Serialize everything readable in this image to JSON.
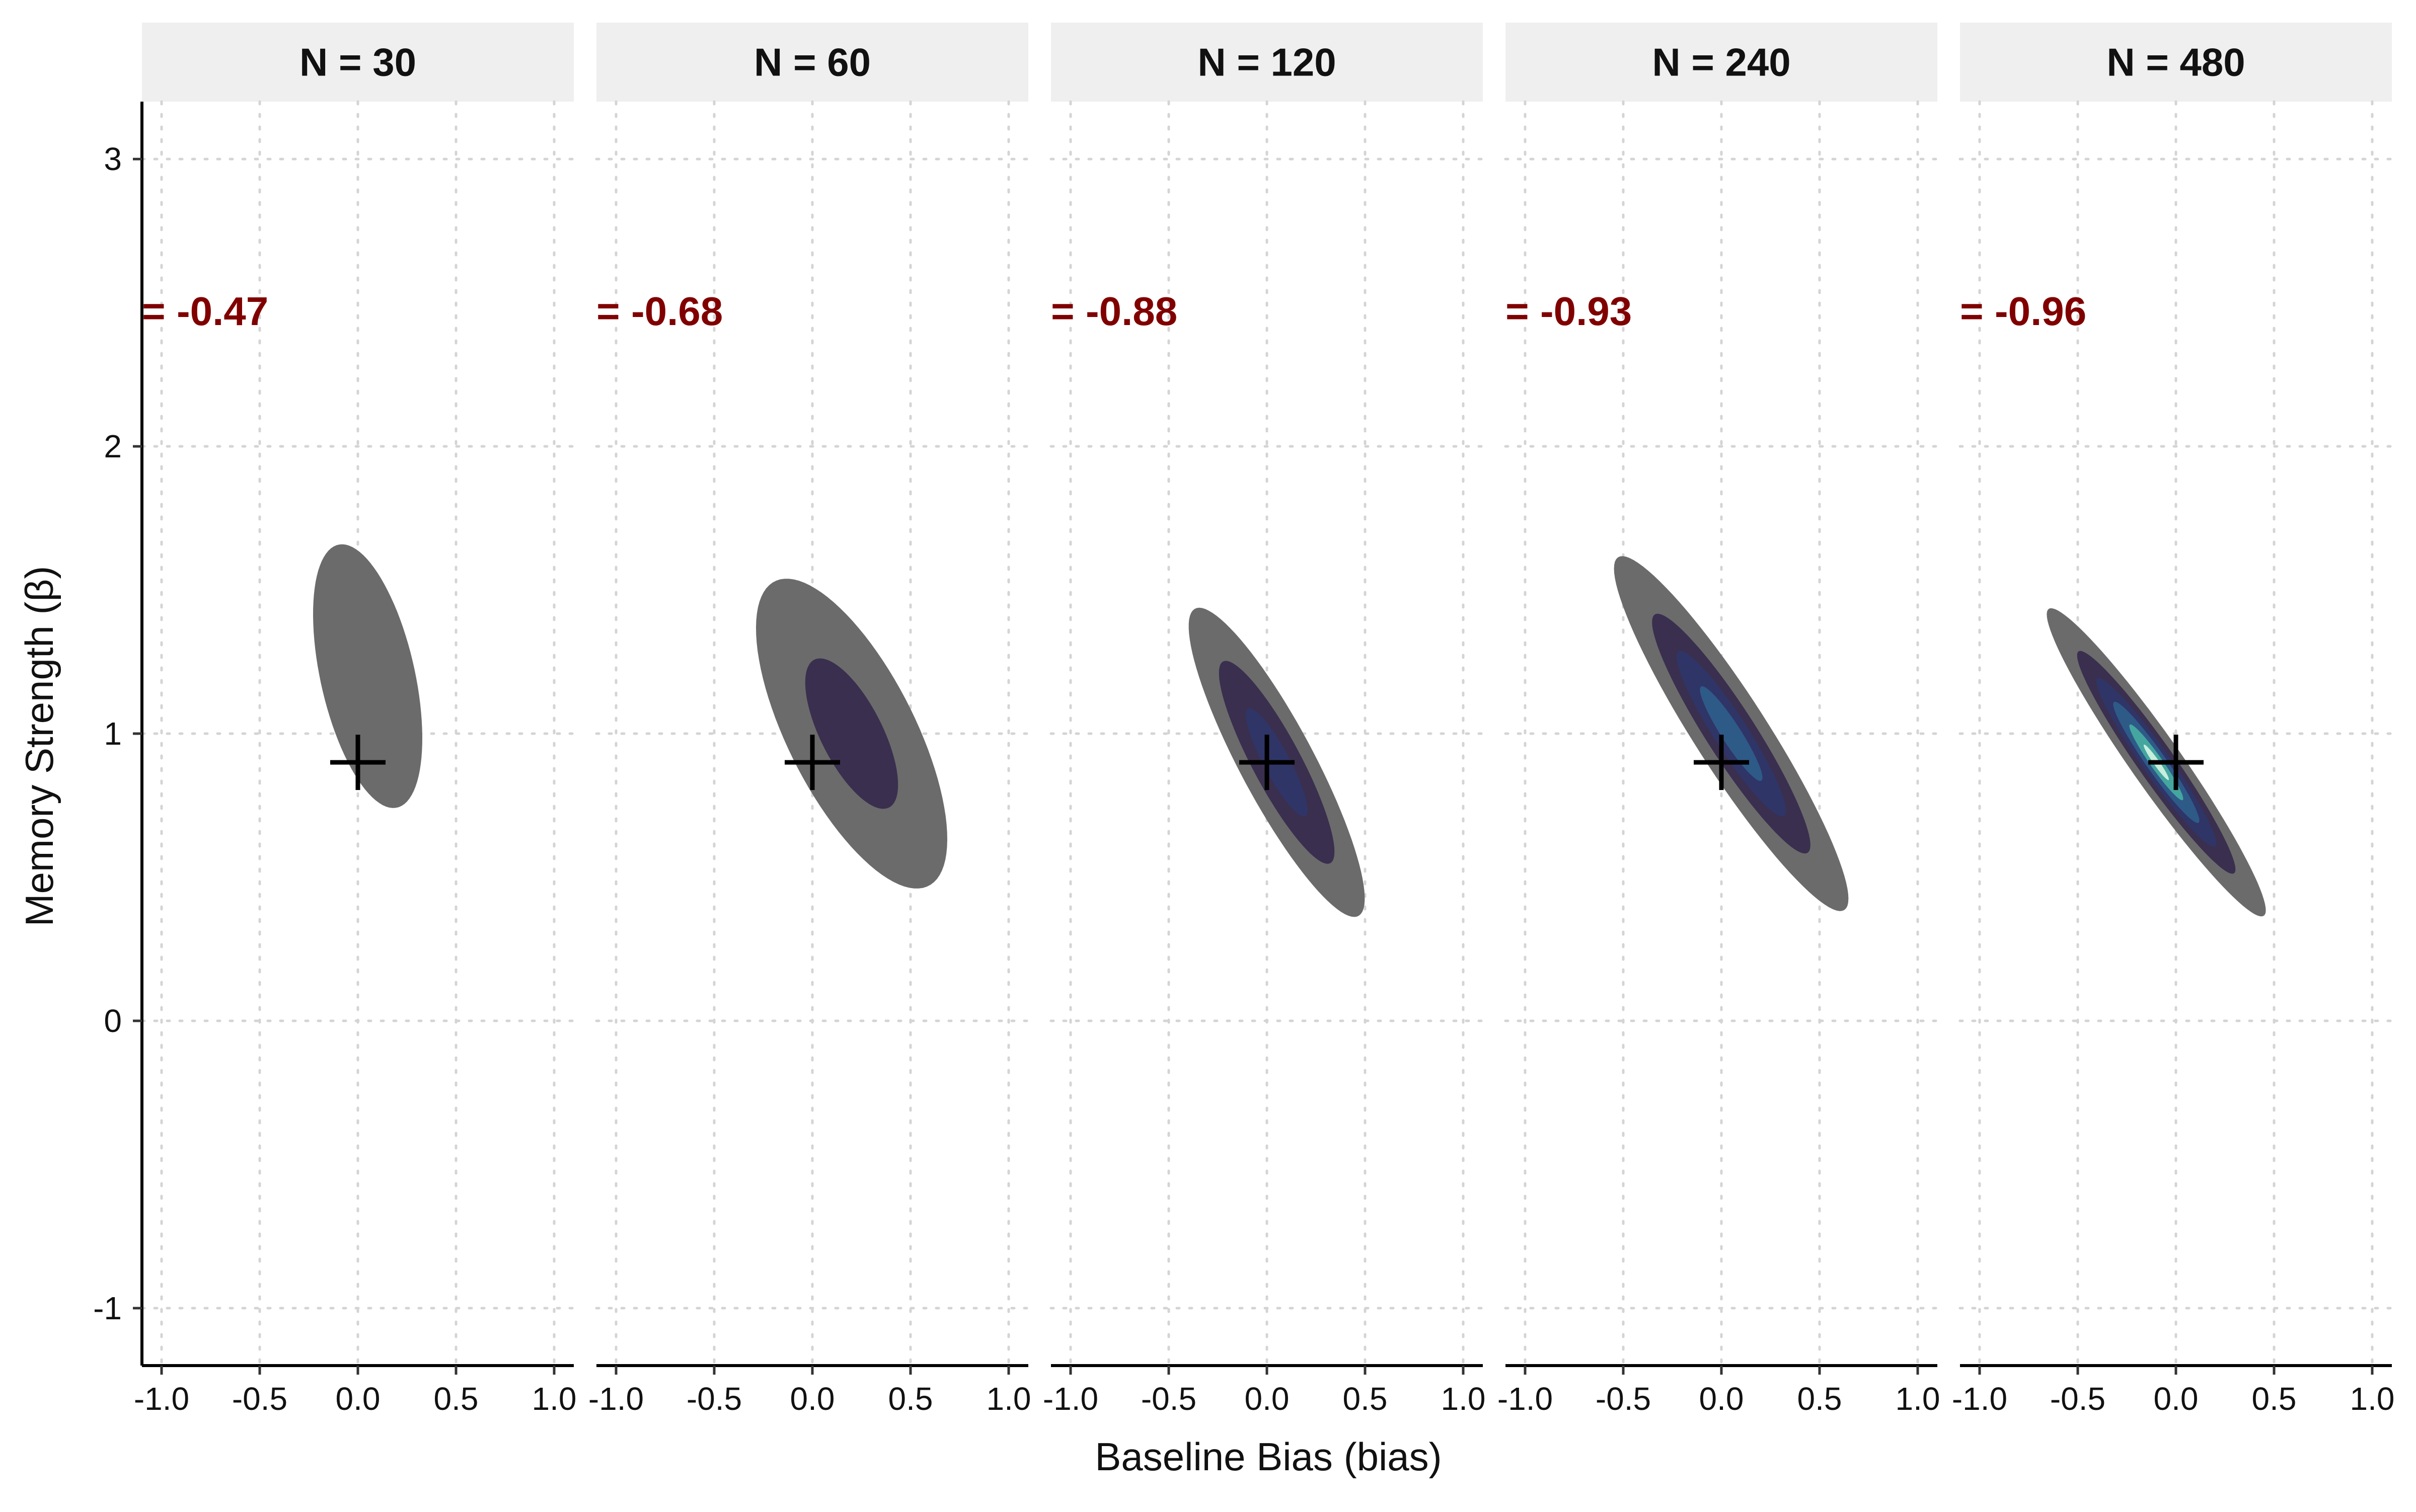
{
  "chart_data": {
    "type": "contour",
    "xlabel": "Baseline Bias (bias)",
    "ylabel": "Memory Strength (β)",
    "xlim": [
      -1.1,
      1.1
    ],
    "ylim": [
      -1.2,
      3.2
    ],
    "x_ticks": [
      "-1.0",
      "-0.5",
      "0.0",
      "0.5",
      "1.0"
    ],
    "y_ticks": [
      "-1",
      "0",
      "1",
      "2",
      "3"
    ],
    "x_tick_values": [
      -1.0,
      -0.5,
      0.0,
      0.5,
      1.0
    ],
    "y_tick_values": [
      -1,
      0,
      1,
      2,
      3
    ],
    "grid": true,
    "true_value": {
      "bias": 0.0,
      "beta": 0.9
    },
    "level_colors": [
      "#6b6b6b",
      "#3a2f4e",
      "#2f3566",
      "#2e5a88",
      "#45a6a0",
      "#c8eedd"
    ],
    "panels": [
      {
        "label": "N = 30",
        "corr_text": "= -0.47",
        "center": [
          0.05,
          1.2
        ],
        "sd_x": 0.2,
        "sd_y": 0.33,
        "rho": -0.47,
        "levels": [
          0.38
        ]
      },
      {
        "label": "N = 60",
        "corr_text": "= -0.68",
        "center": [
          0.2,
          1.0
        ],
        "sd_x": 0.28,
        "sd_y": 0.31,
        "rho": -0.68,
        "levels": [
          0.22,
          0.7
        ]
      },
      {
        "label": "N = 120",
        "corr_text": "= -0.88",
        "center": [
          0.05,
          0.9
        ],
        "sd_x": 0.25,
        "sd_y": 0.3,
        "rho": -0.88,
        "levels": [
          0.2,
          0.5,
          0.82
        ]
      },
      {
        "label": "N = 240",
        "corr_text": "= -0.93",
        "center": [
          0.05,
          1.0
        ],
        "sd_x": 0.29,
        "sd_y": 0.3,
        "rho": -0.93,
        "levels": [
          0.12,
          0.38,
          0.63,
          0.86
        ]
      },
      {
        "label": "N = 480",
        "corr_text": "= -0.96",
        "center": [
          -0.1,
          0.9
        ],
        "sd_x": 0.26,
        "sd_y": 0.25,
        "rho": -0.96,
        "levels": [
          0.1,
          0.3,
          0.5,
          0.7,
          0.87,
          0.97
        ]
      }
    ]
  }
}
